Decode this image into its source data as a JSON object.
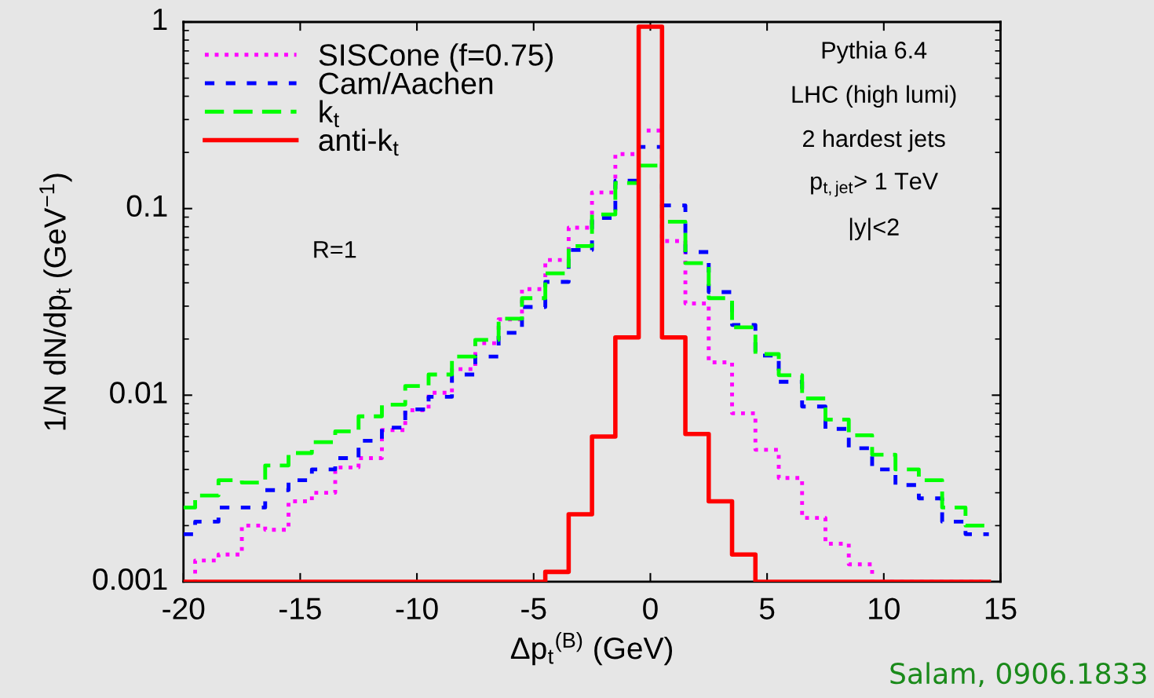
{
  "chart_data": {
    "type": "histogram",
    "xlabel": "Δp$_{t}$$^{(B)}$ (GeV)",
    "ylabel": "1/N dN/dp$_{t}$ (GeV$^{−1}$)",
    "bins": [
      -20,
      -19.5,
      -18.5,
      -17.5,
      -16.5,
      -15.5,
      -14.5,
      -13.5,
      -12.5,
      -11.5,
      -10.5,
      -9.5,
      -8.5,
      -7.5,
      -6.5,
      -5.5,
      -4.5,
      -3.5,
      -2.5,
      -1.5,
      -0.5,
      0.5,
      1.5,
      2.5,
      3.5,
      4.5,
      5.5,
      6.5,
      7.5,
      8.5,
      9.5,
      10.5,
      11.5,
      12.5,
      13.5,
      14.5
    ],
    "series": [
      {
        "name": "SISCone (f=0.75)",
        "color": "#ff00ff",
        "line_style": "dotted",
        "values": [
          null,
          0.0013,
          0.0014,
          0.002,
          0.0019,
          0.0027,
          0.003,
          0.0041,
          0.0046,
          0.0065,
          0.0083,
          0.0103,
          0.0138,
          0.019,
          0.0255,
          0.037,
          0.053,
          0.079,
          0.122,
          0.196,
          0.262,
          0.067,
          0.031,
          0.015,
          0.008,
          0.0051,
          0.0036,
          0.0022,
          0.0016,
          0.00124,
          null,
          null,
          null,
          null,
          null
        ]
      },
      {
        "name": "Cam/Aachen",
        "color": "#0000ff",
        "line_style": "dashed",
        "values": [
          0.0018,
          0.0021,
          0.0025,
          0.0025,
          0.0031,
          0.0035,
          0.004,
          0.0046,
          0.0057,
          0.0067,
          0.0084,
          0.0098,
          0.0129,
          0.0161,
          0.0216,
          0.0297,
          0.0405,
          0.06,
          0.089,
          0.141,
          0.214,
          0.104,
          0.0585,
          0.0357,
          0.0238,
          0.0163,
          0.0118,
          0.0087,
          0.0066,
          0.0052,
          0.004,
          0.0033,
          0.0028,
          0.0021,
          0.0018
        ]
      },
      {
        "name": "k$_{t}$",
        "color": "#00ff00",
        "line_style": "dashed",
        "values": [
          0.0025,
          0.0029,
          0.0035,
          0.0034,
          0.0042,
          0.0049,
          0.0056,
          0.0064,
          0.0077,
          0.0089,
          0.0112,
          0.0129,
          0.0161,
          0.0198,
          0.0257,
          0.0331,
          0.045,
          0.063,
          0.093,
          0.137,
          0.17,
          0.085,
          0.051,
          0.0331,
          0.0231,
          0.0166,
          0.0128,
          0.0096,
          0.0074,
          0.0061,
          0.0048,
          0.004,
          0.0035,
          0.0025,
          0.002
        ]
      },
      {
        "name": "anti-k$_{t}$",
        "color": "#ff0000",
        "line_style": "solid",
        "values": [
          null,
          null,
          null,
          null,
          null,
          null,
          null,
          null,
          null,
          null,
          null,
          null,
          null,
          null,
          null,
          null,
          0.00113,
          0.0023,
          0.006,
          0.0204,
          0.944,
          0.0204,
          0.0062,
          0.0027,
          0.0014,
          null,
          null,
          null,
          null,
          null,
          null,
          null,
          null,
          null,
          null
        ]
      }
    ],
    "log": "y",
    "xlim": [
      -20,
      15
    ],
    "xticks": [
      -20,
      -15,
      -10,
      -5,
      0,
      5,
      10,
      15
    ],
    "ylim": [
      0.001,
      1
    ],
    "yticks": [
      {
        "value": 0.001,
        "label": "0.001"
      },
      {
        "value": 0.01,
        "label": "0.01"
      },
      {
        "value": 0.1,
        "label": "0.1"
      },
      {
        "value": 1,
        "label": "1"
      }
    ],
    "legend": "top left",
    "grid": false,
    "annotations": [
      "R=1",
      "Pythia 6.4",
      "LHC (high lumi)",
      "2 hardest jets",
      "p$_{t,jet}$> 1 TeV",
      "|y|<2",
      "Salam, 0906.1833"
    ]
  }
}
